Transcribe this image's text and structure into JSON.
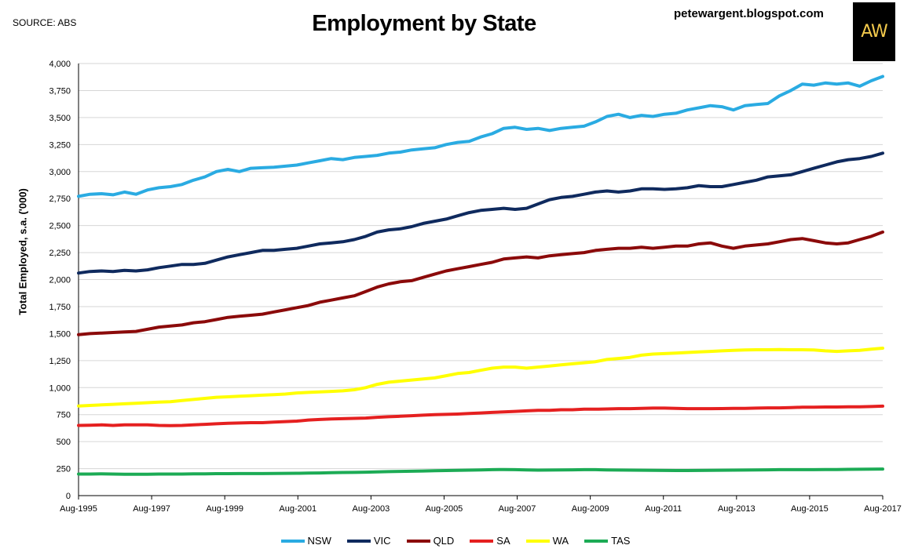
{
  "header": {
    "source": "SOURCE: ABS",
    "title": "Employment by State",
    "blog": "petewargent.blogspot.com",
    "logo_text": "AW"
  },
  "chart_data": {
    "type": "line",
    "title": "Employment by State",
    "xlabel": "",
    "ylabel": "Total Employed, s.a. ('000)",
    "x_ticks": [
      "Aug-1995",
      "Aug-1997",
      "Aug-1999",
      "Aug-2001",
      "Aug-2003",
      "Aug-2005",
      "Aug-2007",
      "Aug-2009",
      "Aug-2011",
      "Aug-2013",
      "Aug-2015",
      "Aug-2017"
    ],
    "x_anchor_years": [
      1995,
      1997,
      1999,
      2001,
      2003,
      2005,
      2007,
      2009,
      2011,
      2013,
      2015,
      2017
    ],
    "y_ticks": [
      "0",
      "250",
      "500",
      "750",
      "1,000",
      "1,250",
      "1,500",
      "1,750",
      "2,000",
      "2,250",
      "2,500",
      "2,750",
      "3,000",
      "3,250",
      "3,500",
      "3,750",
      "4,000"
    ],
    "ylim": [
      0,
      4000
    ],
    "grid": "horizontal",
    "legend_position": "bottom",
    "series": [
      {
        "name": "NSW",
        "color": "#2aabe2",
        "values": [
          2770,
          2790,
          2795,
          2785,
          2810,
          2790,
          2830,
          2850,
          2860,
          2880,
          2920,
          2950,
          3000,
          3020,
          3000,
          3030,
          3035,
          3040,
          3050,
          3060,
          3080,
          3100,
          3120,
          3110,
          3130,
          3140,
          3150,
          3170,
          3180,
          3200,
          3210,
          3220,
          3250,
          3270,
          3280,
          3320,
          3350,
          3400,
          3410,
          3390,
          3400,
          3380,
          3400,
          3410,
          3420,
          3460,
          3510,
          3530,
          3500,
          3520,
          3510,
          3530,
          3540,
          3570,
          3590,
          3610,
          3600,
          3570,
          3610,
          3620,
          3630,
          3700,
          3750,
          3810,
          3800,
          3820,
          3810,
          3820,
          3790,
          3840,
          3880
        ]
      },
      {
        "name": "VIC",
        "color": "#0f2a5e",
        "values": [
          2060,
          2075,
          2080,
          2075,
          2085,
          2080,
          2090,
          2110,
          2125,
          2140,
          2140,
          2150,
          2180,
          2210,
          2230,
          2250,
          2270,
          2270,
          2280,
          2290,
          2310,
          2330,
          2340,
          2350,
          2370,
          2400,
          2440,
          2460,
          2470,
          2490,
          2520,
          2540,
          2560,
          2590,
          2620,
          2640,
          2650,
          2660,
          2650,
          2660,
          2700,
          2740,
          2760,
          2770,
          2790,
          2810,
          2820,
          2810,
          2820,
          2840,
          2840,
          2835,
          2840,
          2850,
          2870,
          2860,
          2860,
          2880,
          2900,
          2920,
          2950,
          2960,
          2970,
          3000,
          3030,
          3060,
          3090,
          3110,
          3120,
          3140,
          3170
        ]
      },
      {
        "name": "QLD",
        "color": "#8b0a0a",
        "values": [
          1490,
          1500,
          1505,
          1510,
          1515,
          1520,
          1540,
          1560,
          1570,
          1580,
          1600,
          1610,
          1630,
          1650,
          1660,
          1670,
          1680,
          1700,
          1720,
          1740,
          1760,
          1790,
          1810,
          1830,
          1850,
          1890,
          1930,
          1960,
          1980,
          1990,
          2020,
          2050,
          2080,
          2100,
          2120,
          2140,
          2160,
          2190,
          2200,
          2210,
          2200,
          2220,
          2230,
          2240,
          2250,
          2270,
          2280,
          2290,
          2290,
          2300,
          2290,
          2300,
          2310,
          2310,
          2330,
          2340,
          2310,
          2290,
          2310,
          2320,
          2330,
          2350,
          2370,
          2380,
          2360,
          2340,
          2330,
          2340,
          2370,
          2400,
          2440
        ]
      },
      {
        "name": "SA",
        "color": "#e52020",
        "values": [
          650,
          652,
          655,
          650,
          655,
          655,
          655,
          650,
          648,
          650,
          655,
          660,
          665,
          670,
          672,
          675,
          675,
          680,
          685,
          690,
          700,
          705,
          710,
          712,
          715,
          718,
          725,
          730,
          735,
          740,
          745,
          750,
          752,
          755,
          760,
          765,
          770,
          775,
          780,
          785,
          790,
          790,
          795,
          795,
          800,
          800,
          802,
          805,
          805,
          808,
          810,
          810,
          808,
          805,
          805,
          805,
          806,
          808,
          808,
          810,
          812,
          812,
          815,
          818,
          818,
          820,
          820,
          822,
          822,
          825,
          828
        ]
      },
      {
        "name": "WA",
        "color": "#ffff00",
        "values": [
          830,
          835,
          840,
          845,
          850,
          855,
          860,
          865,
          870,
          880,
          890,
          900,
          910,
          915,
          920,
          925,
          930,
          935,
          940,
          950,
          955,
          960,
          965,
          970,
          980,
          1000,
          1030,
          1050,
          1060,
          1070,
          1080,
          1090,
          1110,
          1130,
          1140,
          1160,
          1180,
          1190,
          1190,
          1180,
          1190,
          1200,
          1210,
          1220,
          1230,
          1240,
          1260,
          1270,
          1280,
          1300,
          1310,
          1315,
          1320,
          1325,
          1330,
          1335,
          1340,
          1345,
          1348,
          1350,
          1350,
          1352,
          1350,
          1350,
          1348,
          1340,
          1335,
          1340,
          1345,
          1355,
          1365
        ]
      },
      {
        "name": "TAS",
        "color": "#1cab55",
        "values": [
          200,
          200,
          202,
          200,
          198,
          198,
          198,
          200,
          200,
          200,
          202,
          202,
          203,
          203,
          204,
          204,
          204,
          205,
          206,
          207,
          208,
          210,
          212,
          214,
          215,
          217,
          220,
          222,
          224,
          226,
          228,
          230,
          232,
          234,
          236,
          238,
          240,
          242,
          240,
          238,
          236,
          237,
          238,
          239,
          240,
          240,
          238,
          237,
          236,
          235,
          234,
          233,
          232,
          232,
          233,
          234,
          235,
          236,
          237,
          238,
          239,
          240,
          240,
          240,
          240,
          241,
          242,
          243,
          244,
          245,
          246
        ]
      }
    ]
  }
}
